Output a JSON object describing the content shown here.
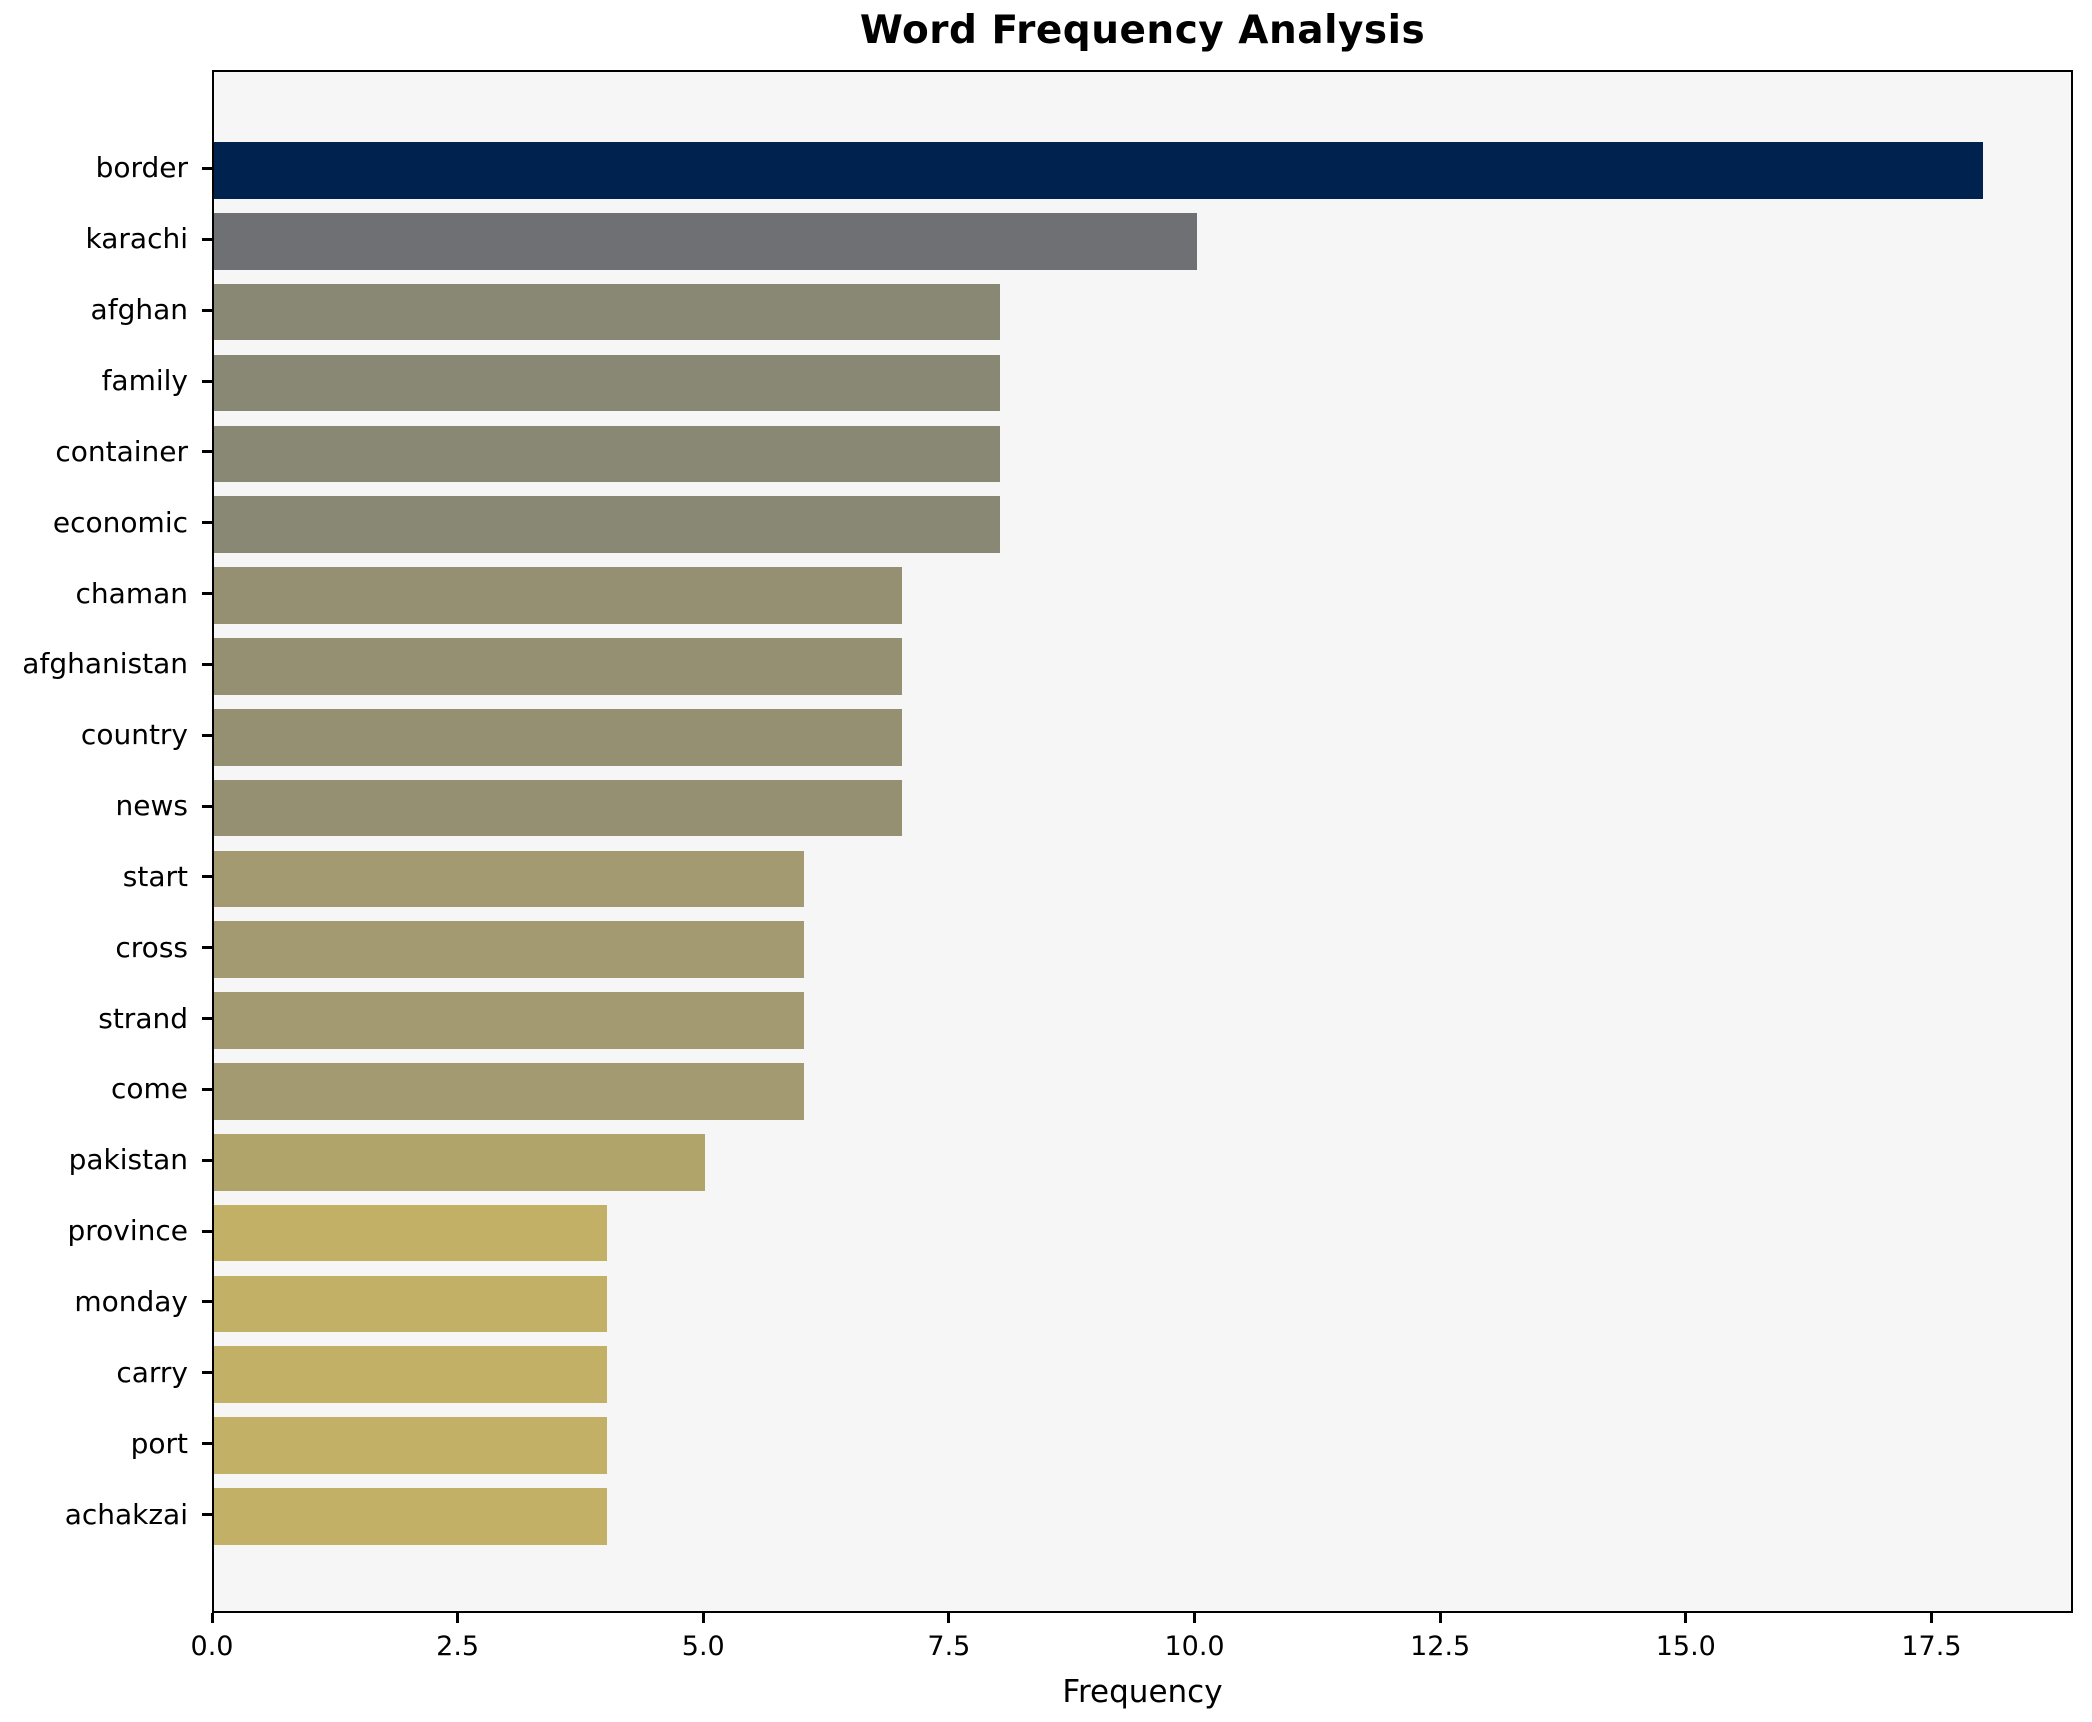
{
  "figure": {
    "title": "Word Frequency Analysis"
  },
  "chart_data": {
    "type": "bar",
    "orientation": "horizontal",
    "title": "Word Frequency Analysis",
    "xlabel": "Frequency",
    "ylabel": "",
    "categories": [
      "border",
      "karachi",
      "afghan",
      "family",
      "container",
      "economic",
      "chaman",
      "afghanistan",
      "country",
      "news",
      "start",
      "cross",
      "strand",
      "come",
      "pakistan",
      "province",
      "monday",
      "carry",
      "port",
      "achakzai"
    ],
    "values": [
      18,
      10,
      8,
      8,
      8,
      8,
      7,
      7,
      7,
      7,
      6,
      6,
      6,
      6,
      5,
      4,
      4,
      4,
      4,
      4
    ],
    "bar_colors": [
      "#00224e",
      "#6e7073",
      "#898874",
      "#898874",
      "#898874",
      "#898874",
      "#969072",
      "#969072",
      "#969072",
      "#969072",
      "#a49a71",
      "#a49a71",
      "#a49a71",
      "#a49a71",
      "#b1a46b",
      "#c1b065",
      "#c1b065",
      "#c1b065",
      "#c1b065",
      "#c1b065"
    ],
    "xlim": [
      0,
      18.9
    ],
    "x_ticks": [
      0,
      2.5,
      5,
      7.5,
      10,
      12.5,
      15,
      17.5
    ],
    "x_tick_labels": [
      "0.0",
      "2.5",
      "5.0",
      "7.5",
      "10.0",
      "12.5",
      "15.0",
      "17.5"
    ],
    "grid": false,
    "legend": null,
    "plot_background": "#f6f6f7",
    "figure_background": "#ffffff",
    "spine_color": "#000000",
    "bar_height_fraction": 0.8
  }
}
